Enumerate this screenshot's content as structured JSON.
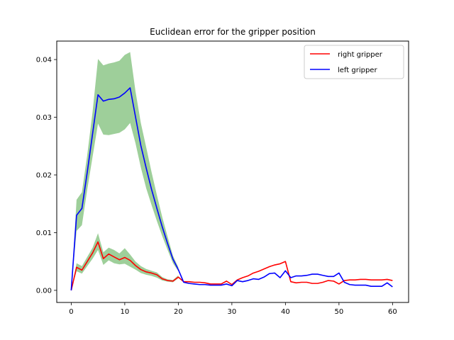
{
  "chart_data": {
    "type": "line",
    "title": "Euclidean error for the gripper position",
    "xlabel": "",
    "ylabel": "",
    "xlim": [
      -2.7,
      63
    ],
    "ylim": [
      -0.0021,
      0.0432
    ],
    "xticks": [
      0,
      10,
      20,
      30,
      40,
      50,
      60
    ],
    "xtick_labels": [
      "0",
      "10",
      "20",
      "30",
      "40",
      "50",
      "60"
    ],
    "yticks": [
      0.0,
      0.01,
      0.02,
      0.03,
      0.04
    ],
    "ytick_labels": [
      "0.00",
      "0.01",
      "0.02",
      "0.03",
      "0.04"
    ],
    "legend_position": "top-right",
    "grid": false,
    "x": [
      0,
      1,
      2,
      3,
      4,
      5,
      6,
      7,
      8,
      9,
      10,
      11,
      12,
      13,
      14,
      15,
      16,
      17,
      18,
      19,
      20,
      21,
      22,
      23,
      24,
      25,
      26,
      27,
      28,
      29,
      30,
      31,
      32,
      33,
      34,
      35,
      36,
      37,
      38,
      39,
      40,
      41,
      42,
      43,
      44,
      45,
      46,
      47,
      48,
      49,
      50,
      51,
      52,
      53,
      54,
      55,
      56,
      57,
      58,
      59,
      60
    ],
    "series": [
      {
        "name": "right gripper",
        "color": "#ff0000",
        "values": [
          0.0,
          0.004,
          0.0035,
          0.005,
          0.0065,
          0.0084,
          0.0055,
          0.0063,
          0.0058,
          0.0053,
          0.0057,
          0.0052,
          0.0043,
          0.0036,
          0.0032,
          0.003,
          0.0027,
          0.002,
          0.0017,
          0.0016,
          0.0023,
          0.0015,
          0.0015,
          0.0014,
          0.0014,
          0.0013,
          0.0011,
          0.0011,
          0.0011,
          0.0016,
          0.001,
          0.0018,
          0.0022,
          0.0025,
          0.003,
          0.0033,
          0.0037,
          0.0041,
          0.0044,
          0.0046,
          0.005,
          0.0015,
          0.0013,
          0.0014,
          0.0014,
          0.0012,
          0.0012,
          0.0014,
          0.0017,
          0.0016,
          0.0011,
          0.0017,
          0.0018,
          0.0018,
          0.0019,
          0.0019,
          0.0018,
          0.0018,
          0.0018,
          0.0019,
          0.0017
        ]
      },
      {
        "name": "left gripper",
        "color": "#0000ff",
        "values": [
          0.0,
          0.013,
          0.0142,
          0.0205,
          0.0272,
          0.0339,
          0.0328,
          0.0331,
          0.0332,
          0.0335,
          0.0342,
          0.0351,
          0.0301,
          0.0251,
          0.0212,
          0.0175,
          0.0142,
          0.011,
          0.0081,
          0.0054,
          0.0036,
          0.0014,
          0.0012,
          0.0011,
          0.001,
          0.001,
          0.0009,
          0.0009,
          0.0009,
          0.0011,
          0.0008,
          0.0017,
          0.0015,
          0.0017,
          0.002,
          0.0019,
          0.0023,
          0.0029,
          0.003,
          0.0022,
          0.0034,
          0.0022,
          0.0025,
          0.0025,
          0.0026,
          0.0028,
          0.0028,
          0.0026,
          0.0024,
          0.0024,
          0.003,
          0.0014,
          0.001,
          0.0009,
          0.0009,
          0.0009,
          0.0007,
          0.0007,
          0.0007,
          0.0013,
          0.0006
        ]
      }
    ],
    "bands": [
      {
        "color": "#9ecf9a",
        "series": "right gripper",
        "lower": [
          0.0,
          0.0033,
          0.0029,
          0.0042,
          0.0055,
          0.007,
          0.0044,
          0.0052,
          0.0047,
          0.0045,
          0.0046,
          0.0041,
          0.0036,
          0.003,
          0.0027,
          0.0025,
          0.0022,
          0.0017,
          0.0015,
          0.0014,
          0.0021
        ],
        "upper": [
          0.0,
          0.0047,
          0.0042,
          0.0058,
          0.0074,
          0.0099,
          0.0066,
          0.0074,
          0.007,
          0.0064,
          0.0073,
          0.0062,
          0.005,
          0.0042,
          0.0037,
          0.0034,
          0.0031,
          0.0023,
          0.0019,
          0.0018,
          0.0026
        ]
      },
      {
        "color": "#9ecf9a",
        "series": "left gripper",
        "lower": [
          0.0,
          0.0103,
          0.0113,
          0.0175,
          0.0232,
          0.0289,
          0.027,
          0.0269,
          0.0271,
          0.0273,
          0.0279,
          0.029,
          0.0255,
          0.0213,
          0.0177,
          0.0148,
          0.012,
          0.0094,
          0.007,
          0.0047,
          0.0033
        ],
        "upper": [
          0.0,
          0.0157,
          0.017,
          0.0235,
          0.031,
          0.0401,
          0.039,
          0.0393,
          0.0395,
          0.0398,
          0.0408,
          0.0413,
          0.0345,
          0.029,
          0.0248,
          0.0205,
          0.0165,
          0.0127,
          0.0093,
          0.006,
          0.004
        ]
      }
    ]
  }
}
